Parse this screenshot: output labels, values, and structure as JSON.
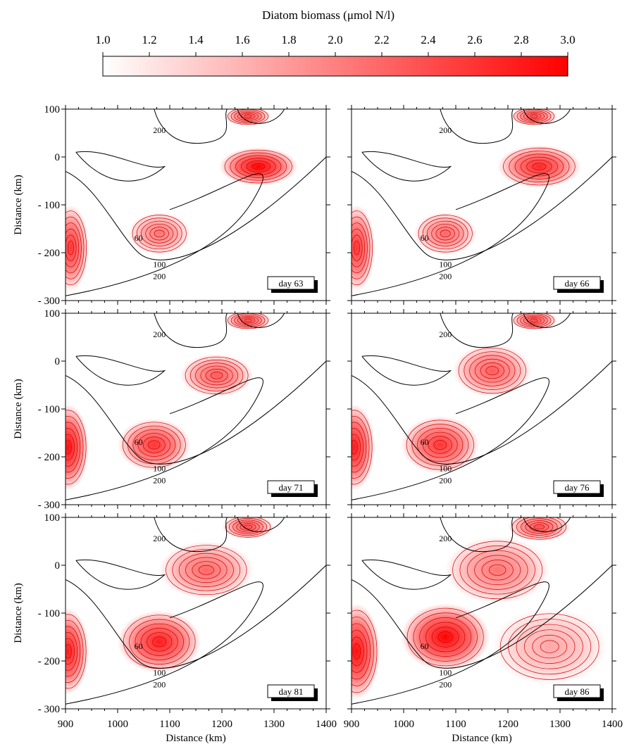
{
  "chart_data": {
    "type": "heatmap",
    "colorbar": {
      "title": "Diatom biomass (μmol N/l)",
      "min": 1.0,
      "max": 3.0,
      "ticks": [
        "1.0",
        "1.2",
        "1.4",
        "1.6",
        "1.8",
        "2.0",
        "2.2",
        "2.4",
        "2.6",
        "2.8",
        "3.0"
      ],
      "low_color": "#ffffff",
      "high_color": "#ff0000"
    },
    "xlabel": "Distance (km)",
    "ylabel": "Distance (km)",
    "xlim": [
      900,
      1400
    ],
    "ylim": [
      -300,
      100
    ],
    "xticks": [
      "900",
      "1000",
      "1100",
      "1200",
      "1300",
      "1400"
    ],
    "yticks": [
      "100",
      "0",
      "- 100",
      "- 200",
      "- 300"
    ],
    "bathymetry_labels": [
      "200",
      "60",
      "100",
      "200"
    ],
    "panels": [
      {
        "label": "day 63",
        "blobs": [
          {
            "x": 910,
            "y": -190,
            "rx": 35,
            "ry": 90,
            "value": 2.6
          },
          {
            "x": 1080,
            "y": -160,
            "rx": 60,
            "ry": 45,
            "value": 2.1
          },
          {
            "x": 1270,
            "y": -20,
            "rx": 75,
            "ry": 40,
            "value": 3.0
          },
          {
            "x": 1250,
            "y": 85,
            "rx": 45,
            "ry": 20,
            "value": 2.4
          }
        ]
      },
      {
        "label": "day 66",
        "blobs": [
          {
            "x": 910,
            "y": -190,
            "rx": 35,
            "ry": 90,
            "value": 2.6
          },
          {
            "x": 1080,
            "y": -160,
            "rx": 60,
            "ry": 45,
            "value": 2.2
          },
          {
            "x": 1260,
            "y": -20,
            "rx": 80,
            "ry": 45,
            "value": 2.7
          },
          {
            "x": 1250,
            "y": 85,
            "rx": 45,
            "ry": 20,
            "value": 2.4
          }
        ]
      },
      {
        "label": "day 71",
        "blobs": [
          {
            "x": 905,
            "y": -180,
            "rx": 40,
            "ry": 90,
            "value": 2.9
          },
          {
            "x": 1070,
            "y": -175,
            "rx": 70,
            "ry": 55,
            "value": 2.6
          },
          {
            "x": 1190,
            "y": -30,
            "rx": 70,
            "ry": 45,
            "value": 2.3
          },
          {
            "x": 1250,
            "y": 85,
            "rx": 45,
            "ry": 20,
            "value": 2.4
          }
        ]
      },
      {
        "label": "day 76",
        "blobs": [
          {
            "x": 905,
            "y": -180,
            "rx": 40,
            "ry": 90,
            "value": 2.8
          },
          {
            "x": 1070,
            "y": -175,
            "rx": 75,
            "ry": 60,
            "value": 2.6
          },
          {
            "x": 1170,
            "y": -20,
            "rx": 75,
            "ry": 55,
            "value": 2.3
          },
          {
            "x": 1250,
            "y": 85,
            "rx": 45,
            "ry": 20,
            "value": 2.4
          }
        ]
      },
      {
        "label": "day 81",
        "blobs": [
          {
            "x": 905,
            "y": -180,
            "rx": 40,
            "ry": 90,
            "value": 2.8
          },
          {
            "x": 1080,
            "y": -160,
            "rx": 80,
            "ry": 65,
            "value": 2.8
          },
          {
            "x": 1170,
            "y": -10,
            "rx": 90,
            "ry": 60,
            "value": 2.2
          },
          {
            "x": 1250,
            "y": 80,
            "rx": 50,
            "ry": 25,
            "value": 2.4
          }
        ]
      },
      {
        "label": "day 86",
        "blobs": [
          {
            "x": 910,
            "y": -180,
            "rx": 45,
            "ry": 100,
            "value": 2.9
          },
          {
            "x": 1080,
            "y": -150,
            "rx": 85,
            "ry": 70,
            "value": 3.0
          },
          {
            "x": 1180,
            "y": -10,
            "rx": 100,
            "ry": 70,
            "value": 2.1
          },
          {
            "x": 1280,
            "y": -170,
            "rx": 110,
            "ry": 80,
            "value": 1.7
          },
          {
            "x": 1260,
            "y": 80,
            "rx": 60,
            "ry": 30,
            "value": 2.4
          }
        ]
      }
    ]
  }
}
